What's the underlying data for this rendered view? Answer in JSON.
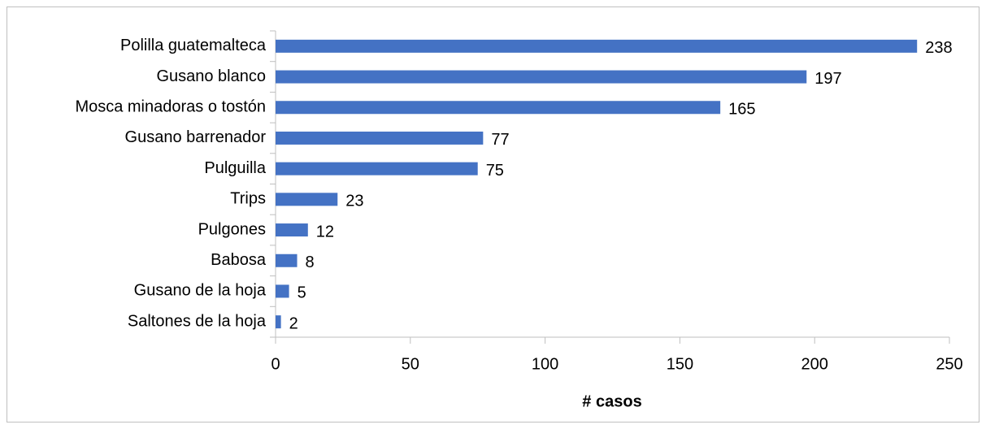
{
  "chart_data": {
    "type": "bar",
    "orientation": "horizontal",
    "categories": [
      "Polilla guatemalteca",
      "Gusano blanco",
      "Mosca minadoras o tostón",
      "Gusano barrenador",
      "Pulguilla",
      "Trips",
      "Pulgones",
      "Babosa",
      "Gusano de la hoja",
      "Saltones de la hoja"
    ],
    "values": [
      238,
      197,
      165,
      77,
      75,
      23,
      12,
      8,
      5,
      2
    ],
    "color": "#4472c4",
    "xlim": [
      0,
      250
    ],
    "xticks": [
      0,
      50,
      100,
      150,
      200,
      250
    ],
    "xlabel": "# casos",
    "grid": false
  }
}
